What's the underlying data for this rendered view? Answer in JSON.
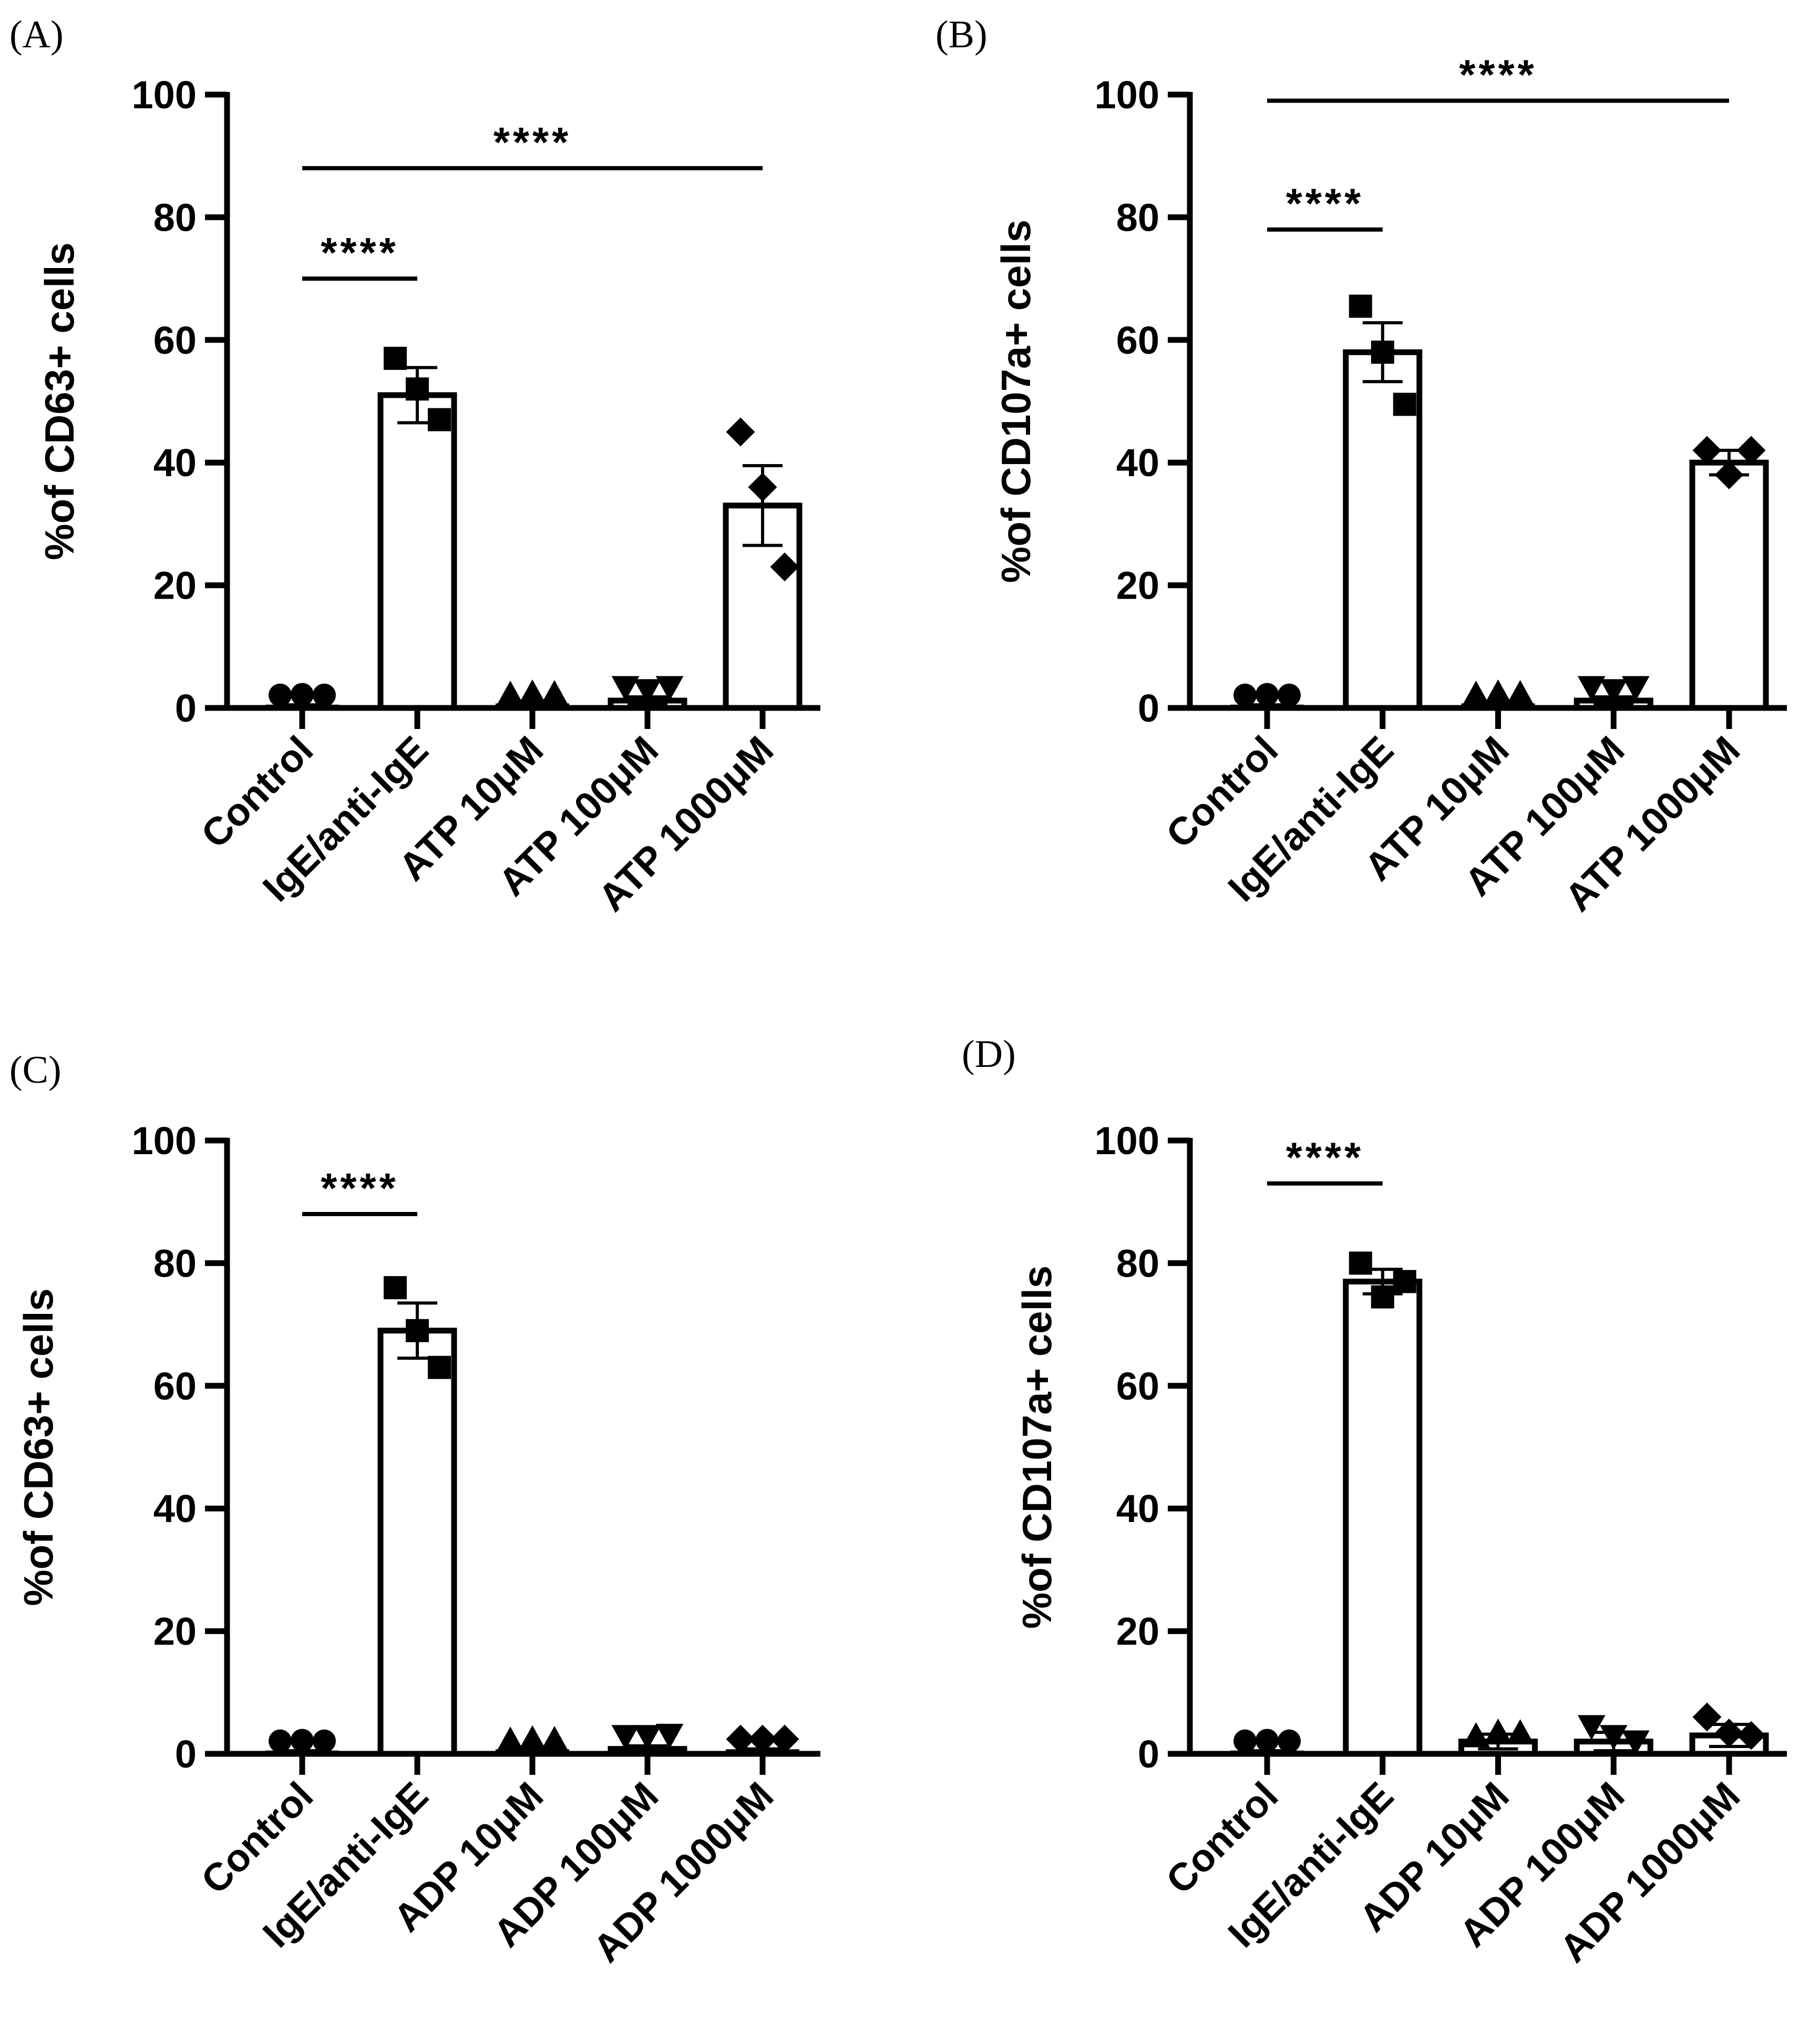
{
  "chart_data": [
    {
      "panel_label": "(A)",
      "type": "bar",
      "ylabel": "%of CD63+ cells",
      "ylim": [
        0,
        100
      ],
      "yticks": [
        0,
        20,
        40,
        60,
        80,
        100
      ],
      "categories": [
        "Control",
        "IgE/anti-IgE",
        "ATP 10μM",
        "ATP 100μM",
        "ATP 1000μM"
      ],
      "markers": [
        "circle",
        "square",
        "triangle-up",
        "triangle-down",
        "diamond"
      ],
      "values": [
        0.3,
        51,
        0.5,
        1.2,
        33
      ],
      "errors": [
        0.2,
        4.5,
        0.3,
        0.6,
        6.5
      ],
      "points": [
        [
          0.2,
          0.3,
          0.2
        ],
        [
          57,
          52,
          47
        ],
        [
          0.3,
          0.5,
          0.4
        ],
        [
          1.5,
          1.0,
          1.5
        ],
        [
          45,
          36,
          23
        ]
      ],
      "significance": [
        {
          "from": 0,
          "to": 1,
          "level": 70,
          "label": "****"
        },
        {
          "from": 0,
          "to": 4,
          "level": 88,
          "label": "****"
        }
      ]
    },
    {
      "panel_label": "(B)",
      "type": "bar",
      "ylabel": "%of CD107a+ cells",
      "ylim": [
        0,
        100
      ],
      "yticks": [
        0,
        20,
        40,
        60,
        80,
        100
      ],
      "categories": [
        "Control",
        "IgE/anti-IgE",
        "ATP 10μM",
        "ATP 100μM",
        "ATP 1000μM"
      ],
      "markers": [
        "circle",
        "square",
        "triangle-up",
        "triangle-down",
        "diamond"
      ],
      "values": [
        0.3,
        58,
        0.5,
        1.2,
        40
      ],
      "errors": [
        0.2,
        4.8,
        0.3,
        0.6,
        2.0
      ],
      "points": [
        [
          0.2,
          0.3,
          0.2
        ],
        [
          65.5,
          58,
          49.5
        ],
        [
          0.3,
          0.5,
          0.4
        ],
        [
          1.5,
          1.0,
          1.5
        ],
        [
          42,
          38,
          42
        ]
      ],
      "significance": [
        {
          "from": 0,
          "to": 1,
          "level": 78,
          "label": "****"
        },
        {
          "from": 0,
          "to": 4,
          "level": 99,
          "label": "****"
        }
      ]
    },
    {
      "panel_label": "(C)",
      "type": "bar",
      "ylabel": "%of CD63+ cells",
      "ylim": [
        0,
        100
      ],
      "yticks": [
        0,
        20,
        40,
        60,
        80,
        100
      ],
      "categories": [
        "Control",
        "IgE/anti-IgE",
        "ADP 10μM",
        "ADP 100μM",
        "ADP 1000μM"
      ],
      "markers": [
        "circle",
        "square",
        "triangle-up",
        "triangle-down",
        "diamond"
      ],
      "values": [
        0.3,
        69,
        0.5,
        0.8,
        0.5
      ],
      "errors": [
        0.2,
        4.5,
        0.3,
        0.5,
        0.3
      ],
      "points": [
        [
          0.2,
          0.3,
          0.2
        ],
        [
          76,
          69,
          63
        ],
        [
          0.3,
          0.5,
          0.4
        ],
        [
          1.0,
          1.0,
          1.2
        ],
        [
          0.5,
          0.5,
          0.5
        ]
      ],
      "significance": [
        {
          "from": 0,
          "to": 1,
          "level": 88,
          "label": "****"
        }
      ]
    },
    {
      "panel_label": "(D)",
      "type": "bar",
      "ylabel": "%of CD107a+ cells",
      "ylim": [
        0,
        100
      ],
      "yticks": [
        0,
        20,
        40,
        60,
        80,
        100
      ],
      "categories": [
        "Control",
        "IgE/anti-IgE",
        "ADP 10μM",
        "ADP 100μM",
        "ADP 1000μM"
      ],
      "markers": [
        "circle",
        "square",
        "triangle-up",
        "triangle-down",
        "diamond"
      ],
      "values": [
        0.3,
        77,
        2,
        2,
        3
      ],
      "errors": [
        0.2,
        2.0,
        1.2,
        1.5,
        1.8
      ],
      "points": [
        [
          0.2,
          0.3,
          0.2
        ],
        [
          80,
          74.5,
          77
        ],
        [
          1,
          3.5,
          1.5
        ],
        [
          4.5,
          1.0,
          2.0
        ],
        [
          6,
          1.5,
          3
        ]
      ],
      "significance": [
        {
          "from": 0,
          "to": 1,
          "level": 93,
          "label": "****"
        }
      ]
    }
  ]
}
